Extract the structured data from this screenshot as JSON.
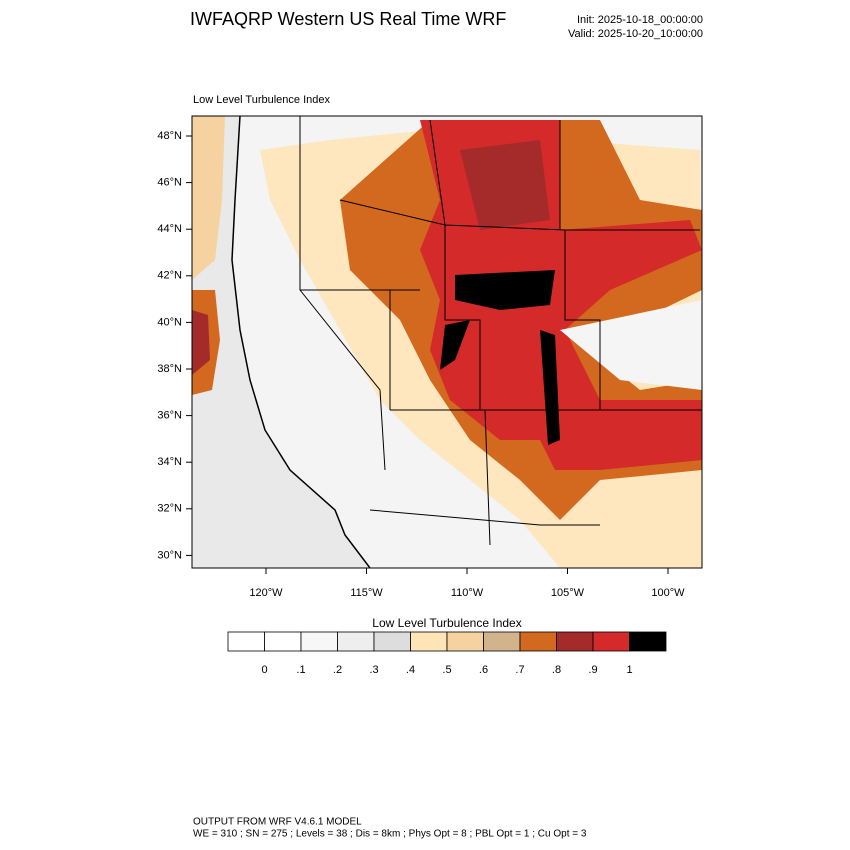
{
  "header": {
    "title": "IWFAQRP Western US Real Time WRF",
    "init": "Init: 2025-10-18_00:00:00",
    "valid": "Valid: 2025-10-20_10:00:00"
  },
  "map": {
    "title": "Low Level Turbulence Index",
    "lat_labels": [
      "48°N",
      "46°N",
      "44°N",
      "42°N",
      "40°N",
      "38°N",
      "36°N",
      "34°N",
      "32°N",
      "30°N"
    ],
    "lon_labels": [
      "120°W",
      "115°W",
      "110°W",
      "105°W",
      "100°W"
    ]
  },
  "colorbar": {
    "title": "Low Level Turbulence Index",
    "labels": [
      "0",
      ".1",
      ".2",
      ".3",
      ".4",
      ".5",
      ".6",
      ".7",
      ".8",
      ".9",
      "1"
    ],
    "colors": [
      "#ffffff",
      "#f7f7f7",
      "#eeeeee",
      "#dddddd",
      "#ffe4b5",
      "#f5d2a0",
      "#d2b48c",
      "#d2691e",
      "#a52a2a",
      "#d42a2a",
      "#000000"
    ]
  },
  "footer": {
    "line1": "OUTPUT FROM WRF V4.6.1 MODEL",
    "line2": "WE = 310 ; SN = 275 ; Levels = 38 ; Dis = 8km ; Phys Opt = 8 ; PBL Opt = 1 ; Cu Opt = 3"
  }
}
